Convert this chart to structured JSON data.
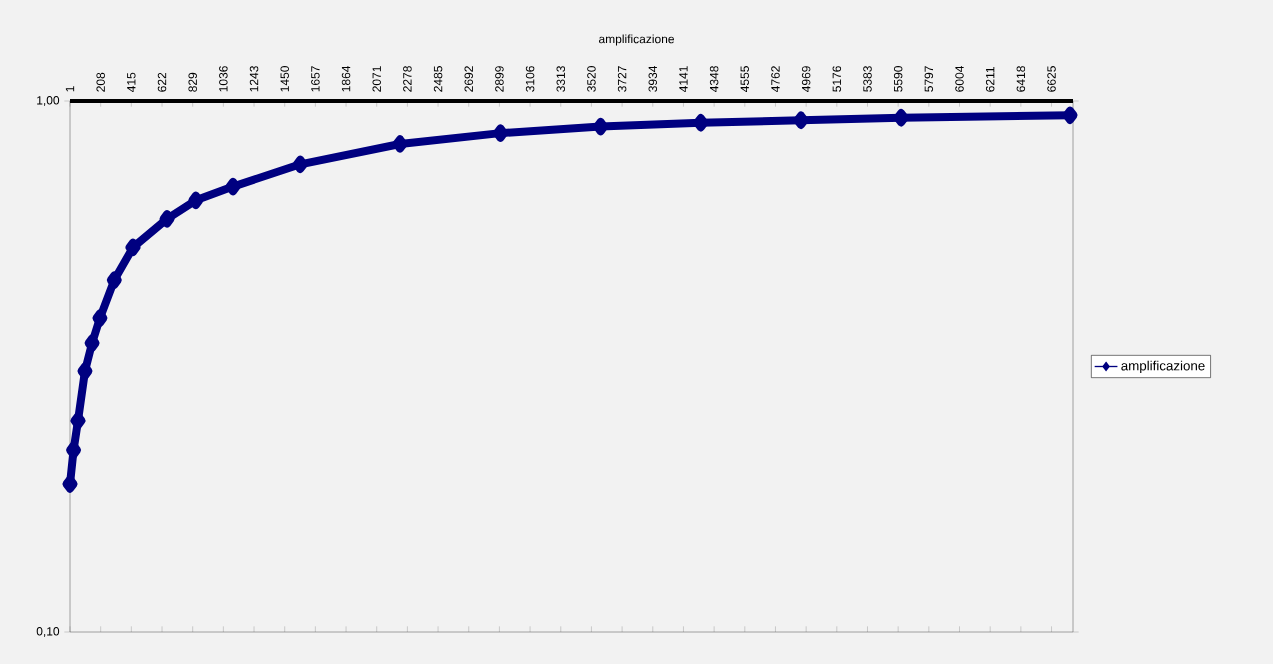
{
  "chart_data": {
    "type": "line",
    "title": "amplificazione",
    "x": [
      1,
      25,
      55,
      102,
      150,
      203,
      300,
      426,
      656,
      850,
      1101,
      1555,
      2228,
      2906,
      3582,
      4258,
      4934,
      5610,
      6750
    ],
    "series": [
      {
        "name": "amplificazione",
        "color": "#000080",
        "values": [
          0.19,
          0.22,
          0.25,
          0.31,
          0.35,
          0.39,
          0.46,
          0.53,
          0.6,
          0.65,
          0.69,
          0.76,
          0.83,
          0.87,
          0.895,
          0.91,
          0.92,
          0.93,
          0.94
        ]
      }
    ],
    "xlim": [
      1,
      6770
    ],
    "xticks": [
      1,
      208,
      415,
      622,
      829,
      1036,
      1243,
      1450,
      1657,
      1864,
      2071,
      2278,
      2485,
      2692,
      2899,
      3106,
      3313,
      3520,
      3727,
      3934,
      4141,
      4348,
      4555,
      4762,
      4969,
      5176,
      5383,
      5590,
      5797,
      6004,
      6211,
      6418,
      6625
    ],
    "ylim": [
      0.1,
      1
    ],
    "yticks": [
      {
        "value": 0.1,
        "label": "0,10"
      },
      {
        "value": 1,
        "label": "1,00"
      }
    ],
    "log": "y",
    "legend": "right",
    "marker": "diamond",
    "line_style": "solid"
  }
}
